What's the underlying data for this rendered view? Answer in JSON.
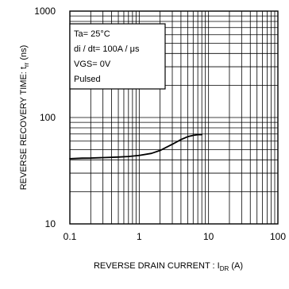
{
  "chart_data": {
    "type": "line",
    "xscale": "log",
    "yscale": "log",
    "xlim": [
      0.1,
      100
    ],
    "ylim": [
      10,
      1000
    ],
    "grid": true,
    "xlabel_main": "REVERSE DRAIN CURRENT : I",
    "xlabel_sub": "DR",
    "xlabel_unit": " (A)",
    "ylabel_main": "REVERSE RECOVERY TIME: t",
    "ylabel_sub": "rr",
    "ylabel_unit": " (ns)",
    "x_tick_labels": [
      "0.1",
      "1",
      "10",
      "100"
    ],
    "y_tick_labels": [
      "10",
      "100",
      "1000"
    ],
    "annotation": [
      "Ta= 25°C",
      "di / dt= 100A / μs",
      "VGS= 0V",
      "Pulsed"
    ],
    "series": [
      {
        "color": "#000000",
        "x": [
          0.1,
          0.15,
          0.2,
          0.3,
          0.5,
          0.7,
          1.0,
          1.5,
          2.0,
          3.0,
          4.0,
          5.0,
          6.0,
          7.0,
          8.0
        ],
        "y": [
          41,
          41.5,
          41.6,
          42,
          42.5,
          43,
          44,
          46,
          49,
          56,
          62,
          66,
          68,
          69,
          69
        ]
      }
    ]
  }
}
